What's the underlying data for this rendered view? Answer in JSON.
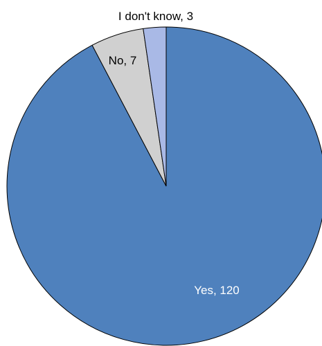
{
  "chart_data": {
    "type": "pie",
    "title": "",
    "legend": "none",
    "start_angle_deg": 0,
    "direction": "clockwise",
    "slices": [
      {
        "label": "Yes",
        "value": 120,
        "color": "#4f81bd",
        "data_label": "Yes, 120"
      },
      {
        "label": "No",
        "value": 7,
        "color": "#d0d0d0",
        "data_label": "No, 7"
      },
      {
        "label": "I don't know",
        "value": 3,
        "color": "#a9b9e6",
        "data_label": "I don't know, 3"
      }
    ]
  }
}
